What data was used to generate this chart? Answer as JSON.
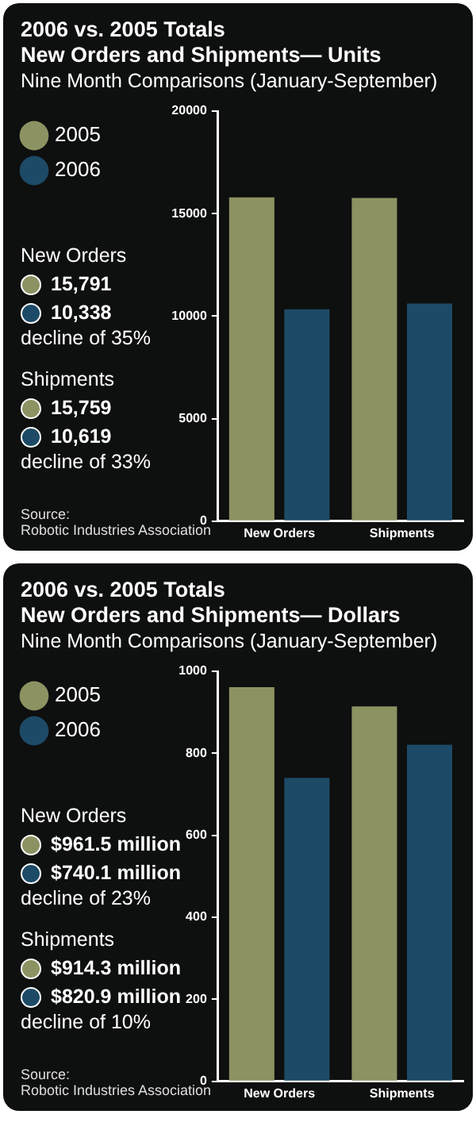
{
  "chart_data": [
    {
      "type": "bar",
      "title": "2006 vs. 2005 Totals\nNew Orders and Shipments— Units",
      "subtitle": "Nine Month Comparisons (January-September)",
      "categories": [
        "New Orders",
        "Shipments"
      ],
      "series": [
        {
          "name": "2005",
          "color": "#8d9262",
          "values": [
            15791,
            15759
          ]
        },
        {
          "name": "2006",
          "color": "#1d4a66",
          "values": [
            10338,
            10619
          ]
        }
      ],
      "ylim": [
        0,
        20000
      ],
      "yticks": [
        0,
        5000,
        10000,
        15000,
        20000
      ],
      "grid": false,
      "legend": "left",
      "annotations": [
        "New Orders",
        "15,791",
        "10,338",
        "decline of 35%",
        "Shipments",
        "15,759",
        "10,619",
        "decline of 33%",
        "Source:\nRobotic Industries Association"
      ]
    },
    {
      "type": "bar",
      "title": "2006 vs. 2005 Totals\nNew Orders and Shipments— Dollars",
      "subtitle": "Nine Month Comparisons (January-September)",
      "categories": [
        "New Orders",
        "Shipments"
      ],
      "series": [
        {
          "name": "2005",
          "color": "#8d9262",
          "values": [
            961.5,
            914.3
          ]
        },
        {
          "name": "2006",
          "color": "#1d4a66",
          "values": [
            740.1,
            820.9
          ]
        }
      ],
      "ylim": [
        0,
        1000
      ],
      "yticks": [
        0,
        200,
        400,
        600,
        800,
        1000
      ],
      "grid": false,
      "legend": "left",
      "annotations": [
        "New Orders",
        "$961.5 million",
        "$740.1 million",
        "decline of 23%",
        "Shipments",
        "$914.3 million",
        "$820.9 million",
        "decline of 10%",
        "Source:\nRobotic Industries Association"
      ]
    }
  ]
}
